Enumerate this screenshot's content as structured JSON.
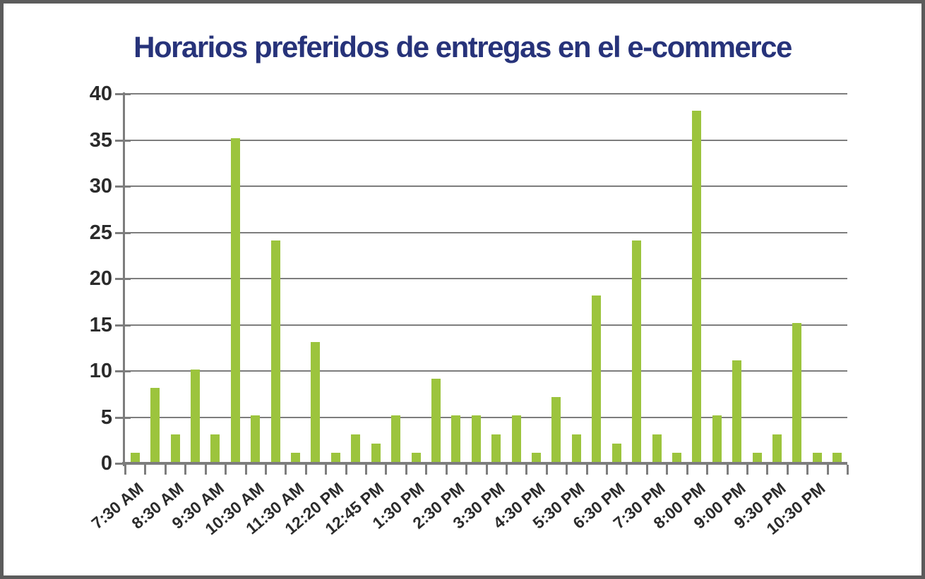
{
  "title": "Horarios preferidos de entregas en el e-commerce",
  "chart_data": {
    "type": "bar",
    "title": "Horarios preferidos de entregas en el e-commerce",
    "values": [
      1,
      8,
      3,
      10,
      3,
      35,
      5,
      24,
      1,
      13,
      1,
      3,
      2,
      5,
      1,
      9,
      5,
      5,
      3,
      5,
      1,
      7,
      3,
      18,
      2,
      24,
      3,
      1,
      38,
      5,
      11,
      1,
      3,
      15,
      1,
      1
    ],
    "x_tick_labels": [
      "7:30 AM",
      "8:30 AM",
      "9:30 AM",
      "10:30 AM",
      "11:30 AM",
      "12:20 PM",
      "12:45 PM",
      "1:30 PM",
      "2:30 PM",
      "3:30 PM",
      "4:30 PM",
      "5:30 PM",
      "6:30 PM",
      "7:30 PM",
      "8:00 PM",
      "9:00 PM",
      "9:30 PM",
      "10:30 PM"
    ],
    "x_label_interval": 2,
    "y_ticks": [
      0,
      5,
      10,
      15,
      20,
      25,
      30,
      35,
      40
    ],
    "ylim": [
      0,
      40
    ],
    "grid": "horizontal",
    "legend": "none",
    "colors": {
      "bar": "#9cc43d",
      "grid": "#7d7d7d",
      "axis": "#7d7d7d",
      "tick_labels": "#2b2b2b",
      "title": "#27337a",
      "frame_border": "#5c5c5c",
      "background": "#ffffff"
    }
  }
}
